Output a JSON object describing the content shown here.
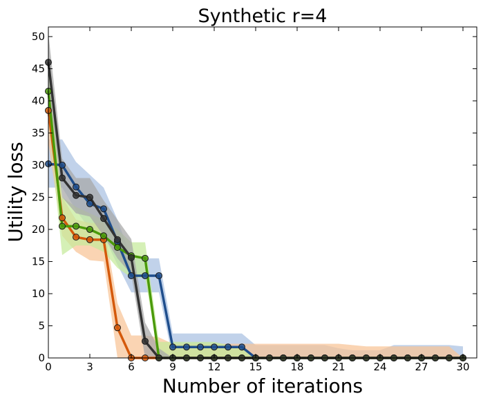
{
  "chart_data": {
    "type": "line",
    "title": "Synthetic r=4",
    "xlabel": "Number of iterations",
    "ylabel": "Utility loss",
    "xlim": [
      0,
      31
    ],
    "ylim": [
      0,
      51.5
    ],
    "xticks": [
      0,
      3,
      6,
      9,
      12,
      15,
      18,
      21,
      24,
      27,
      30
    ],
    "yticks": [
      0,
      5,
      10,
      15,
      20,
      25,
      30,
      35,
      40,
      45,
      50
    ],
    "grid": false,
    "x": [
      0,
      1,
      2,
      3,
      4,
      5,
      6,
      7,
      8,
      9,
      10,
      11,
      12,
      13,
      14,
      15,
      16,
      17,
      18,
      19,
      20,
      21,
      22,
      23,
      24,
      25,
      26,
      27,
      28,
      29,
      30
    ],
    "series": [
      {
        "color": "#1f4e8c",
        "band_color": "#a9c0e2",
        "values": [
          30.2,
          30.0,
          26.6,
          24.0,
          23.2,
          18.1,
          12.8,
          12.8,
          12.8,
          1.7,
          1.7,
          1.7,
          1.7,
          1.7,
          1.7,
          0,
          0,
          0,
          0,
          0,
          0,
          0,
          0,
          0,
          0,
          0,
          0,
          0,
          0,
          0,
          0
        ],
        "lower": [
          26.5,
          26.5,
          23.0,
          20.0,
          19.0,
          14.5,
          10.2,
          10.2,
          10.2,
          0,
          0,
          0,
          0,
          0,
          0,
          0,
          0,
          0,
          0,
          0,
          0,
          0,
          0,
          0,
          0,
          0,
          0,
          0,
          0,
          0,
          0
        ],
        "upper": [
          34.0,
          34.0,
          30.5,
          28.5,
          26.5,
          21.5,
          15.5,
          15.5,
          15.5,
          3.8,
          3.8,
          3.8,
          3.8,
          3.8,
          3.8,
          2.0,
          2.0,
          2.0,
          2.0,
          2.0,
          2.0,
          1.5,
          1.2,
          1.2,
          1.2,
          2.0,
          2.0,
          2.0,
          2.0,
          2.0,
          1.8
        ]
      },
      {
        "color": "#d4590b",
        "band_color": "#f8c396",
        "values": [
          38.5,
          21.8,
          18.8,
          18.4,
          18.4,
          4.7,
          0,
          0,
          0,
          0,
          0,
          0,
          0,
          0,
          0,
          0,
          0,
          0,
          0,
          0,
          0,
          0,
          0,
          0,
          0,
          0,
          0,
          0,
          0,
          0,
          0
        ],
        "lower": [
          33.5,
          19.0,
          16.5,
          15.2,
          15.0,
          0,
          0,
          0,
          0,
          0,
          0,
          0,
          0,
          0,
          0,
          0,
          0,
          0,
          0,
          0,
          0,
          0,
          0,
          0,
          0,
          0,
          0,
          0,
          0,
          0,
          0
        ],
        "upper": [
          43.0,
          25.0,
          21.5,
          21.0,
          21.0,
          8.5,
          3.5,
          3.5,
          3.2,
          2.2,
          2.2,
          2.2,
          2.2,
          2.2,
          2.2,
          2.2,
          2.2,
          2.2,
          2.2,
          2.2,
          2.2,
          2.2,
          2.0,
          1.8,
          1.8,
          1.8,
          1.8,
          1.8,
          1.8,
          1.8,
          0
        ]
      },
      {
        "color": "#4a9a0a",
        "band_color": "#c5ea9a",
        "values": [
          41.5,
          20.5,
          20.5,
          20.0,
          19.0,
          17.2,
          15.9,
          15.5,
          0,
          0,
          0,
          0,
          0,
          0,
          0,
          0,
          0,
          0,
          0,
          0,
          0,
          0,
          0,
          0,
          0,
          0,
          0,
          0,
          0,
          0,
          0
        ],
        "lower": [
          37.0,
          16.0,
          17.5,
          17.5,
          16.5,
          14.0,
          12.5,
          12.5,
          0,
          0,
          0,
          0,
          0,
          0,
          0,
          0,
          0,
          0,
          0,
          0,
          0,
          0,
          0,
          0,
          0,
          0,
          0,
          0,
          0,
          0,
          0
        ],
        "upper": [
          46.0,
          25.0,
          23.5,
          22.5,
          21.5,
          20.0,
          18.0,
          18.0,
          2.5,
          2.5,
          2.5,
          2.5,
          2.5,
          2.0,
          1.5,
          0,
          0,
          0,
          0,
          0,
          0,
          0,
          0,
          0,
          0,
          0,
          0,
          0,
          0,
          0,
          0
        ]
      },
      {
        "color": "#333333",
        "band_color": "#a6a6a6",
        "values": [
          46.0,
          28.0,
          25.3,
          25.0,
          21.7,
          18.4,
          15.6,
          2.6,
          0,
          0,
          0,
          0,
          0,
          0,
          0,
          0,
          0,
          0,
          0,
          0,
          0,
          0,
          0,
          0,
          0,
          0,
          0,
          0,
          0,
          0,
          0
        ],
        "lower": [
          42.5,
          25.0,
          22.5,
          22.0,
          19.0,
          15.5,
          13.0,
          0,
          0,
          0,
          0,
          0,
          0,
          0,
          0,
          0,
          0,
          0,
          0,
          0,
          0,
          0,
          0,
          0,
          0,
          0,
          0,
          0,
          0,
          0,
          0
        ],
        "upper": [
          50.5,
          31.0,
          28.0,
          28.0,
          24.5,
          21.5,
          18.5,
          5.5,
          1.5,
          0,
          0,
          0,
          0,
          0,
          0,
          0,
          0,
          0,
          0,
          0,
          0,
          0,
          0,
          0,
          0,
          0,
          0,
          0,
          0,
          0,
          0
        ]
      }
    ]
  }
}
